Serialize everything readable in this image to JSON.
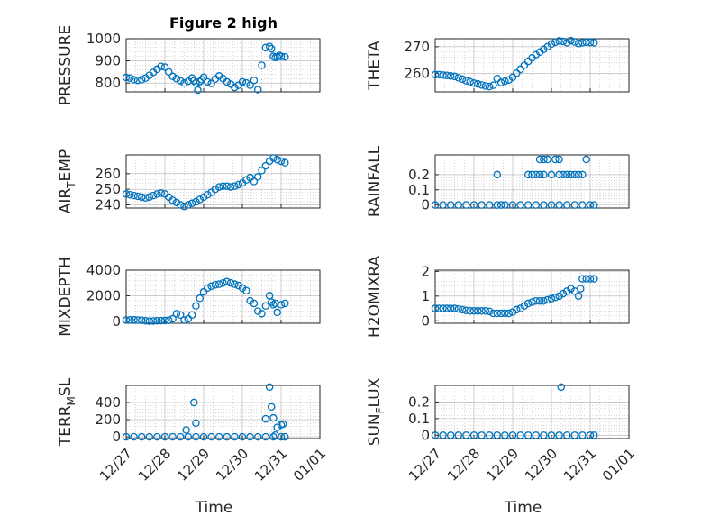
{
  "figure": {
    "title": "Figure 2 high",
    "marker_color": "#0072BD",
    "axis_color": "#262626",
    "grid_color": "#B0B0B0"
  },
  "chart_data": [
    {
      "type": "scatter",
      "ylabel": "PRESSURE",
      "xlabel": "",
      "xlim": [
        0,
        5
      ],
      "ylim": [
        760,
        1000
      ],
      "yticks": [
        800,
        900,
        1000
      ],
      "yticklabels": [
        "800",
        "900",
        "1000"
      ],
      "xticklabels": [],
      "grid": true,
      "x": [
        0.0,
        0.1,
        0.2,
        0.3,
        0.4,
        0.5,
        0.6,
        0.7,
        0.8,
        0.9,
        1.0,
        1.1,
        1.2,
        1.3,
        1.4,
        1.5,
        1.6,
        1.7,
        1.75,
        1.8,
        1.85,
        1.9,
        1.95,
        2.0,
        2.1,
        2.2,
        2.3,
        2.4,
        2.5,
        2.6,
        2.7,
        2.8,
        2.9,
        3.0,
        3.1,
        3.2,
        3.3,
        3.4,
        3.5,
        3.6,
        3.7,
        3.75,
        3.8,
        3.85,
        3.9,
        3.95,
        4.0,
        4.1
      ],
      "y": [
        825,
        822,
        815,
        812,
        815,
        822,
        835,
        848,
        862,
        875,
        872,
        850,
        830,
        820,
        810,
        800,
        808,
        822,
        810,
        800,
        768,
        806,
        815,
        826,
        805,
        798,
        818,
        832,
        820,
        805,
        795,
        780,
        790,
        805,
        800,
        790,
        812,
        770,
        880,
        960,
        965,
        955,
        920,
        915,
        918,
        925,
        920,
        918
      ]
    },
    {
      "type": "scatter",
      "ylabel": "THETA",
      "xlabel": "",
      "xlim": [
        0,
        5
      ],
      "ylim": [
        253,
        273
      ],
      "yticks": [
        260,
        270
      ],
      "yticklabels": [
        "260",
        "270"
      ],
      "xticklabels": [],
      "grid": true,
      "x": [
        0.0,
        0.1,
        0.2,
        0.3,
        0.4,
        0.5,
        0.6,
        0.7,
        0.8,
        0.9,
        1.0,
        1.1,
        1.2,
        1.3,
        1.4,
        1.5,
        1.6,
        1.7,
        1.8,
        1.9,
        2.0,
        2.1,
        2.2,
        2.3,
        2.4,
        2.5,
        2.6,
        2.7,
        2.8,
        2.9,
        3.0,
        3.1,
        3.2,
        3.3,
        3.4,
        3.5,
        3.6,
        3.7,
        3.8,
        3.9,
        4.0,
        4.1
      ],
      "y": [
        259.5,
        259.5,
        259.3,
        259.2,
        259.0,
        258.8,
        258.3,
        257.8,
        257.2,
        256.8,
        256.3,
        256.0,
        255.6,
        255.2,
        255.0,
        255.5,
        258,
        256.5,
        257.0,
        257.5,
        258.5,
        260.0,
        261.5,
        263.0,
        264.5,
        265.8,
        267.0,
        268.0,
        269.0,
        270.0,
        271.0,
        271.7,
        272.2,
        272.0,
        271.5,
        272.3,
        271.8,
        271.2,
        271.5,
        271.7,
        271.6,
        271.5
      ]
    },
    {
      "type": "scatter",
      "ylabel": "AIR_TEMP",
      "xlabel": "",
      "xlim": [
        0,
        5
      ],
      "ylim": [
        238,
        272
      ],
      "yticks": [
        240,
        250,
        260
      ],
      "yticklabels": [
        "240",
        "250",
        "260"
      ],
      "xticklabels": [],
      "grid": true,
      "x": [
        0.0,
        0.1,
        0.2,
        0.3,
        0.4,
        0.5,
        0.6,
        0.7,
        0.8,
        0.9,
        1.0,
        1.1,
        1.2,
        1.3,
        1.4,
        1.5,
        1.6,
        1.7,
        1.8,
        1.9,
        2.0,
        2.1,
        2.2,
        2.3,
        2.4,
        2.5,
        2.6,
        2.7,
        2.8,
        2.9,
        3.0,
        3.1,
        3.2,
        3.3,
        3.4,
        3.5,
        3.6,
        3.7,
        3.8,
        3.9,
        4.0,
        4.1
      ],
      "y": [
        247,
        246.5,
        246,
        245.5,
        245,
        244.5,
        245,
        246,
        247,
        247.5,
        247,
        245,
        243,
        241.5,
        240,
        239,
        240,
        241,
        242,
        243.5,
        245,
        246.5,
        248,
        250,
        251.5,
        252,
        252,
        251.5,
        252,
        253,
        254,
        256,
        257.5,
        255,
        258,
        262,
        265,
        268,
        270,
        269,
        268,
        267
      ]
    },
    {
      "type": "scatter",
      "ylabel": "RAINFALL",
      "xlabel": "",
      "xlim": [
        0,
        5
      ],
      "ylim": [
        -0.02,
        0.33
      ],
      "yticks": [
        0,
        0.1,
        0.2
      ],
      "yticklabels": [
        "0",
        "0.1",
        "0.2"
      ],
      "xticklabels": [],
      "grid": true,
      "x": [
        0.0,
        0.2,
        0.4,
        0.6,
        0.8,
        1.0,
        1.2,
        1.4,
        1.6,
        1.7,
        1.8,
        2.0,
        2.2,
        2.4,
        2.6,
        2.8,
        3.0,
        3.2,
        3.4,
        3.6,
        3.8,
        4.0,
        4.1,
        1.6,
        2.4,
        2.5,
        2.6,
        2.7,
        2.8,
        3.0,
        3.2,
        3.3,
        3.4,
        3.5,
        3.6,
        3.7,
        3.8,
        2.7,
        2.8,
        2.9,
        3.1,
        3.2,
        3.9
      ],
      "y": [
        0,
        0,
        0,
        0,
        0,
        0,
        0,
        0,
        0,
        0,
        0,
        0,
        0,
        0,
        0,
        0,
        0,
        0,
        0,
        0,
        0,
        0,
        0,
        0.2,
        0.2,
        0.2,
        0.2,
        0.2,
        0.2,
        0.2,
        0.2,
        0.2,
        0.2,
        0.2,
        0.2,
        0.2,
        0.2,
        0.3,
        0.3,
        0.3,
        0.3,
        0.3,
        0.3
      ]
    },
    {
      "type": "scatter",
      "ylabel": "MIXDEPTH",
      "xlabel": "",
      "xlim": [
        0,
        5
      ],
      "ylim": [
        -150,
        4000
      ],
      "yticks": [
        0,
        2000,
        4000
      ],
      "yticklabels": [
        "0",
        "2000",
        "4000"
      ],
      "xticklabels": [],
      "grid": true,
      "x": [
        0.0,
        0.1,
        0.2,
        0.3,
        0.4,
        0.5,
        0.6,
        0.7,
        0.8,
        0.9,
        1.0,
        1.1,
        1.2,
        1.3,
        1.4,
        1.5,
        1.6,
        1.7,
        1.8,
        1.9,
        2.0,
        2.1,
        2.2,
        2.3,
        2.4,
        2.5,
        2.6,
        2.7,
        2.8,
        2.9,
        3.0,
        3.1,
        3.2,
        3.3,
        3.4,
        3.5,
        3.6,
        3.7,
        3.75,
        3.8,
        3.85,
        3.9,
        4.0,
        4.1
      ],
      "y": [
        100,
        110,
        120,
        100,
        80,
        40,
        20,
        30,
        40,
        50,
        60,
        80,
        200,
        600,
        500,
        100,
        200,
        500,
        1200,
        1800,
        2300,
        2600,
        2750,
        2850,
        2900,
        3000,
        3100,
        3000,
        2900,
        2800,
        2600,
        2400,
        1600,
        1400,
        800,
        600,
        1200,
        2000,
        1500,
        1300,
        1400,
        700,
        1300,
        1400
      ]
    },
    {
      "type": "scatter",
      "ylabel": "H2OMIXRA",
      "xlabel": "",
      "xlim": [
        0,
        5
      ],
      "ylim": [
        -0.1,
        2.05
      ],
      "yticks": [
        0,
        1,
        2
      ],
      "yticklabels": [
        "0",
        "1",
        "2"
      ],
      "xticklabels": [],
      "grid": true,
      "x": [
        0.0,
        0.1,
        0.2,
        0.3,
        0.4,
        0.5,
        0.6,
        0.7,
        0.8,
        0.9,
        1.0,
        1.1,
        1.2,
        1.3,
        1.4,
        1.5,
        1.6,
        1.7,
        1.8,
        1.9,
        2.0,
        2.1,
        2.2,
        2.3,
        2.4,
        2.5,
        2.6,
        2.7,
        2.8,
        2.9,
        3.0,
        3.1,
        3.2,
        3.3,
        3.4,
        3.5,
        3.6,
        3.7,
        3.75,
        3.8,
        3.9,
        4.0,
        4.1
      ],
      "y": [
        0.5,
        0.5,
        0.5,
        0.5,
        0.5,
        0.5,
        0.48,
        0.45,
        0.42,
        0.4,
        0.4,
        0.4,
        0.4,
        0.4,
        0.38,
        0.3,
        0.3,
        0.3,
        0.3,
        0.3,
        0.35,
        0.45,
        0.5,
        0.6,
        0.7,
        0.75,
        0.8,
        0.8,
        0.8,
        0.85,
        0.9,
        0.95,
        1.0,
        1.1,
        1.2,
        1.3,
        1.2,
        1.0,
        1.3,
        1.7,
        1.7,
        1.7,
        1.7
      ]
    },
    {
      "type": "scatter",
      "ylabel": "TERR_MSL",
      "xlabel": "Time",
      "xlim": [
        0,
        5
      ],
      "ylim": [
        -20,
        600
      ],
      "yticks": [
        0,
        200,
        400
      ],
      "yticklabels": [
        "0",
        "200",
        "400"
      ],
      "xticks": [
        0,
        1,
        2,
        3,
        4,
        5
      ],
      "xticklabels": [
        "12/27",
        "12/28",
        "12/29",
        "12/30",
        "12/31",
        "01/01"
      ],
      "grid": true,
      "x": [
        0.0,
        0.2,
        0.4,
        0.6,
        0.8,
        1.0,
        1.2,
        1.4,
        1.6,
        1.8,
        2.0,
        2.2,
        2.4,
        2.6,
        2.8,
        3.0,
        3.2,
        3.4,
        3.6,
        3.8,
        4.0,
        4.1,
        1.55,
        1.75,
        1.8,
        3.6,
        3.7,
        3.75,
        3.8,
        3.85,
        3.9,
        4.0,
        4.05
      ],
      "y": [
        0,
        0,
        0,
        0,
        0,
        0,
        0,
        0,
        0,
        0,
        0,
        0,
        0,
        0,
        0,
        0,
        0,
        0,
        0,
        0,
        0,
        0,
        80,
        400,
        160,
        210,
        580,
        350,
        220,
        20,
        110,
        140,
        150
      ]
    },
    {
      "type": "scatter",
      "ylabel": "SUN_FLUX",
      "xlabel": "Time",
      "xlim": [
        0,
        5
      ],
      "ylim": [
        -0.02,
        0.3
      ],
      "yticks": [
        0,
        0.1,
        0.2
      ],
      "yticklabels": [
        "0",
        "0.1",
        "0.2"
      ],
      "xticks": [
        0,
        1,
        2,
        3,
        4,
        5
      ],
      "xticklabels": [
        "12/27",
        "12/28",
        "12/29",
        "12/30",
        "12/31",
        "01/01"
      ],
      "grid": true,
      "x": [
        0.0,
        0.2,
        0.4,
        0.6,
        0.8,
        1.0,
        1.2,
        1.4,
        1.6,
        1.8,
        2.0,
        2.2,
        2.4,
        2.6,
        2.8,
        3.0,
        3.2,
        3.4,
        3.6,
        3.8,
        4.0,
        4.1,
        3.25
      ],
      "y": [
        0,
        0,
        0,
        0,
        0,
        0,
        0,
        0,
        0,
        0,
        0,
        0,
        0,
        0,
        0,
        0,
        0,
        0,
        0,
        0,
        0,
        0,
        0.29
      ]
    }
  ]
}
